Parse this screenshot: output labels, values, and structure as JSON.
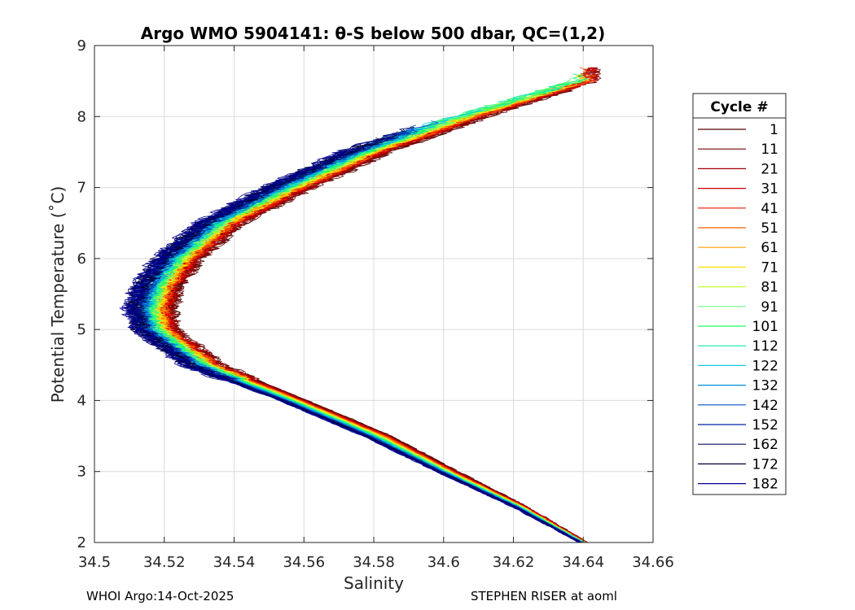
{
  "chart_data": {
    "type": "line",
    "title": "Argo WMO 5904141: θ-S below 500 dbar,  QC=(1,2)",
    "xlabel": "Salinity",
    "ylabel": "Potential Temperature (˚C)",
    "xlim": [
      34.5,
      34.66
    ],
    "ylim": [
      2,
      9
    ],
    "xticks": [
      "34.5",
      "34.52",
      "34.54",
      "34.56",
      "34.58",
      "34.6",
      "34.62",
      "34.64",
      "34.66"
    ],
    "yticks": [
      "2",
      "3",
      "4",
      "5",
      "6",
      "7",
      "8",
      "9"
    ],
    "grid": true,
    "legend": {
      "title": "Cycle #",
      "position": "right",
      "entries": [
        "1",
        "11",
        "21",
        "31",
        "41",
        "51",
        "61",
        "71",
        "81",
        "91",
        "101",
        "112",
        "122",
        "132",
        "142",
        "152",
        "162",
        "172",
        "182"
      ],
      "colors": [
        "#550000",
        "#7a0000",
        "#a00000",
        "#c80000",
        "#ee1a00",
        "#ff5a00",
        "#ffa000",
        "#ffe000",
        "#c0ff30",
        "#70ff80",
        "#20ff60",
        "#10e8b0",
        "#10c8e8",
        "#0090d8",
        "#0050c8",
        "#0020a0",
        "#001060",
        "#000040",
        "#000090"
      ]
    },
    "series_profile": {
      "description": "theta-S curves per cycle; salinity minimum near 5.2 degC",
      "points_theta": [
        2.0,
        2.5,
        3.0,
        3.5,
        4.0,
        4.5,
        5.0,
        5.3,
        5.6,
        6.0,
        6.5,
        7.0,
        7.5,
        8.0,
        8.5
      ],
      "early_cycles_salinity": [
        34.641,
        34.624,
        34.604,
        34.585,
        34.561,
        34.536,
        34.523,
        34.522,
        34.524,
        34.53,
        34.542,
        34.562,
        34.584,
        34.612,
        34.643
      ],
      "late_cycles_salinity": [
        34.639,
        34.62,
        34.598,
        34.577,
        34.553,
        34.526,
        34.512,
        34.51,
        34.512,
        34.518,
        34.53,
        34.549,
        34.571,
        34.598,
        34.635
      ]
    }
  },
  "footer": {
    "left": "WHOI Argo:14-Oct-2025",
    "right": "STEPHEN RISER at aoml"
  }
}
